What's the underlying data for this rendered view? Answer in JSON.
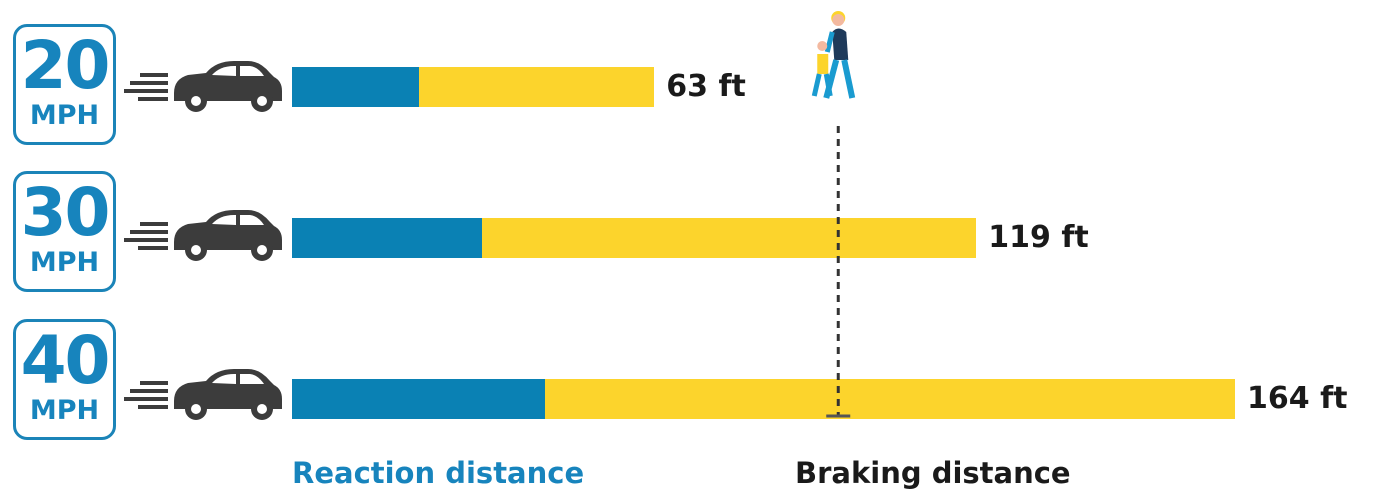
{
  "chart_data": {
    "type": "bar",
    "orientation": "horizontal",
    "stacked": true,
    "categories": [
      "20 MPH",
      "30 MPH",
      "40 MPH"
    ],
    "rows": [
      {
        "speed": "20",
        "unit": "MPH",
        "total_label": "63 ft",
        "reaction": 22,
        "braking": 41,
        "total": 63
      },
      {
        "speed": "30",
        "unit": "MPH",
        "total_label": "119 ft",
        "reaction": 33,
        "braking": 86,
        "total": 119
      },
      {
        "speed": "40",
        "unit": "MPH",
        "total_label": "164 ft",
        "reaction": 44,
        "braking": 120,
        "total": 164
      }
    ],
    "series": [
      {
        "name": "Reaction distance",
        "color": "#0a81b4"
      },
      {
        "name": "Braking distance",
        "color": "#fcd42c"
      }
    ],
    "xlim": [
      0,
      164
    ],
    "pedestrian_marker": 95,
    "grid": false,
    "legend_position": "bottom"
  },
  "colors": {
    "sign_border": "#1b84b8",
    "sign_text": "#1784bd",
    "car_body": "#3c3c3c",
    "speed_lines": "#3c3c3c",
    "reaction_legend_text": "#1784bd",
    "braking_legend_text": "#1a1a1a",
    "pedestrian_adult_shirt": "#1a9bd0",
    "pedestrian_child_shirt": "#fcd42c",
    "pedestrian_dark": "#1f3a5a"
  },
  "icons": {
    "car": "car-icon",
    "speed_lines": "speed-lines-icon",
    "pedestrian": "pedestrians-icon"
  }
}
